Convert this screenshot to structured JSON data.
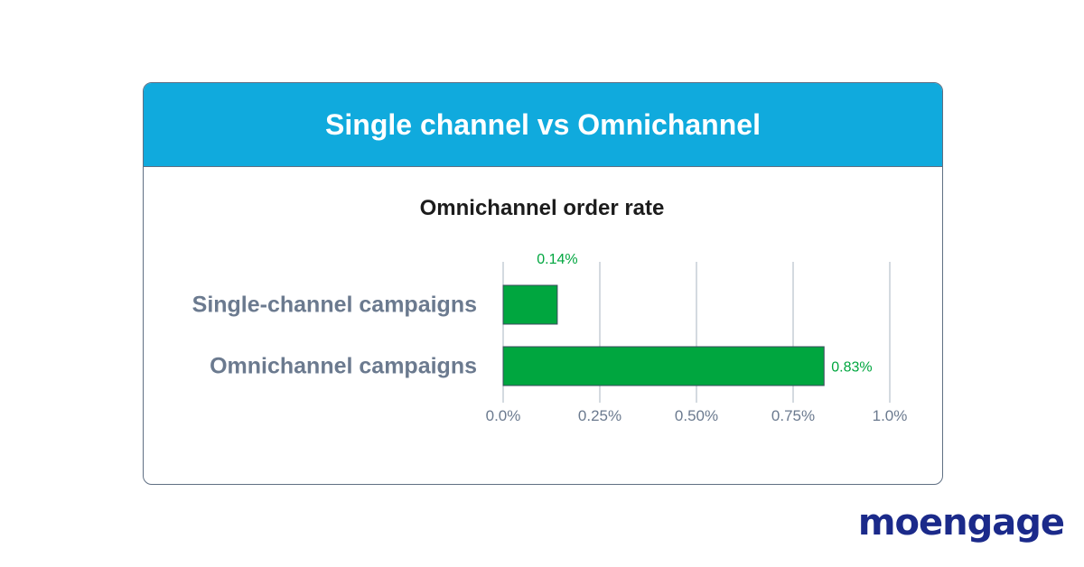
{
  "card": {
    "title": "Single channel vs Omnichannel"
  },
  "brand": {
    "name": "moengage",
    "color": "#1b2a8a"
  },
  "colors": {
    "header": "#10aadd",
    "bar": "#00a63f",
    "value_label": "#00a63f",
    "axis_text": "#6b7a8f"
  },
  "chart_data": {
    "type": "bar",
    "orientation": "horizontal",
    "title": "Omnichannel order rate",
    "categories": [
      "Single-channel campaigns",
      "Omnichannel campaigns"
    ],
    "values": [
      0.14,
      0.83
    ],
    "value_labels": [
      "0.14%",
      "0.83%"
    ],
    "xlim": [
      0,
      1.0
    ],
    "xticks": [
      0,
      0.25,
      0.5,
      0.75,
      1.0
    ],
    "xtick_labels": [
      "0.0%",
      "0.25%",
      "0.50%",
      "0.75%",
      "1.0%"
    ],
    "grid": "vertical",
    "legend": "none"
  }
}
